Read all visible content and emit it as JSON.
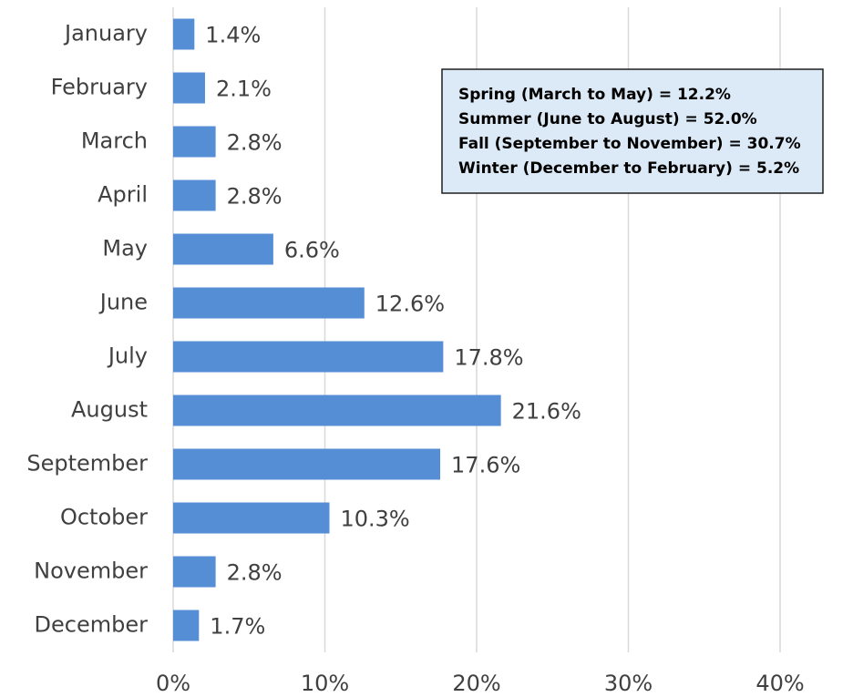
{
  "chart_data": {
    "type": "bar",
    "orientation": "horizontal",
    "categories": [
      "January",
      "February",
      "March",
      "April",
      "May",
      "June",
      "July",
      "August",
      "September",
      "October",
      "November",
      "December"
    ],
    "values": [
      1.4,
      2.1,
      2.8,
      2.8,
      6.6,
      12.6,
      17.8,
      21.6,
      17.6,
      10.3,
      2.8,
      1.7
    ],
    "value_labels": [
      "1.4%",
      "2.1%",
      "2.8%",
      "2.8%",
      "6.6%",
      "12.6%",
      "17.8%",
      "21.6%",
      "17.6%",
      "10.3%",
      "2.8%",
      "1.7%"
    ],
    "color": "#558ed5",
    "xlim": [
      0,
      44
    ],
    "xticks": [
      {
        "value": 0,
        "label": "0%"
      },
      {
        "value": 10,
        "label": "10%"
      },
      {
        "value": 20,
        "label": "20%"
      },
      {
        "value": 30,
        "label": "30%"
      },
      {
        "value": 40,
        "label": "40%"
      }
    ],
    "grid": true,
    "annotations": [
      "Spring (March to May) = 12.2%",
      "Summer (June to August) = 52.0%",
      "Fall (September to November) = 30.7%",
      "Winter (December to February) = 5.2%"
    ]
  }
}
